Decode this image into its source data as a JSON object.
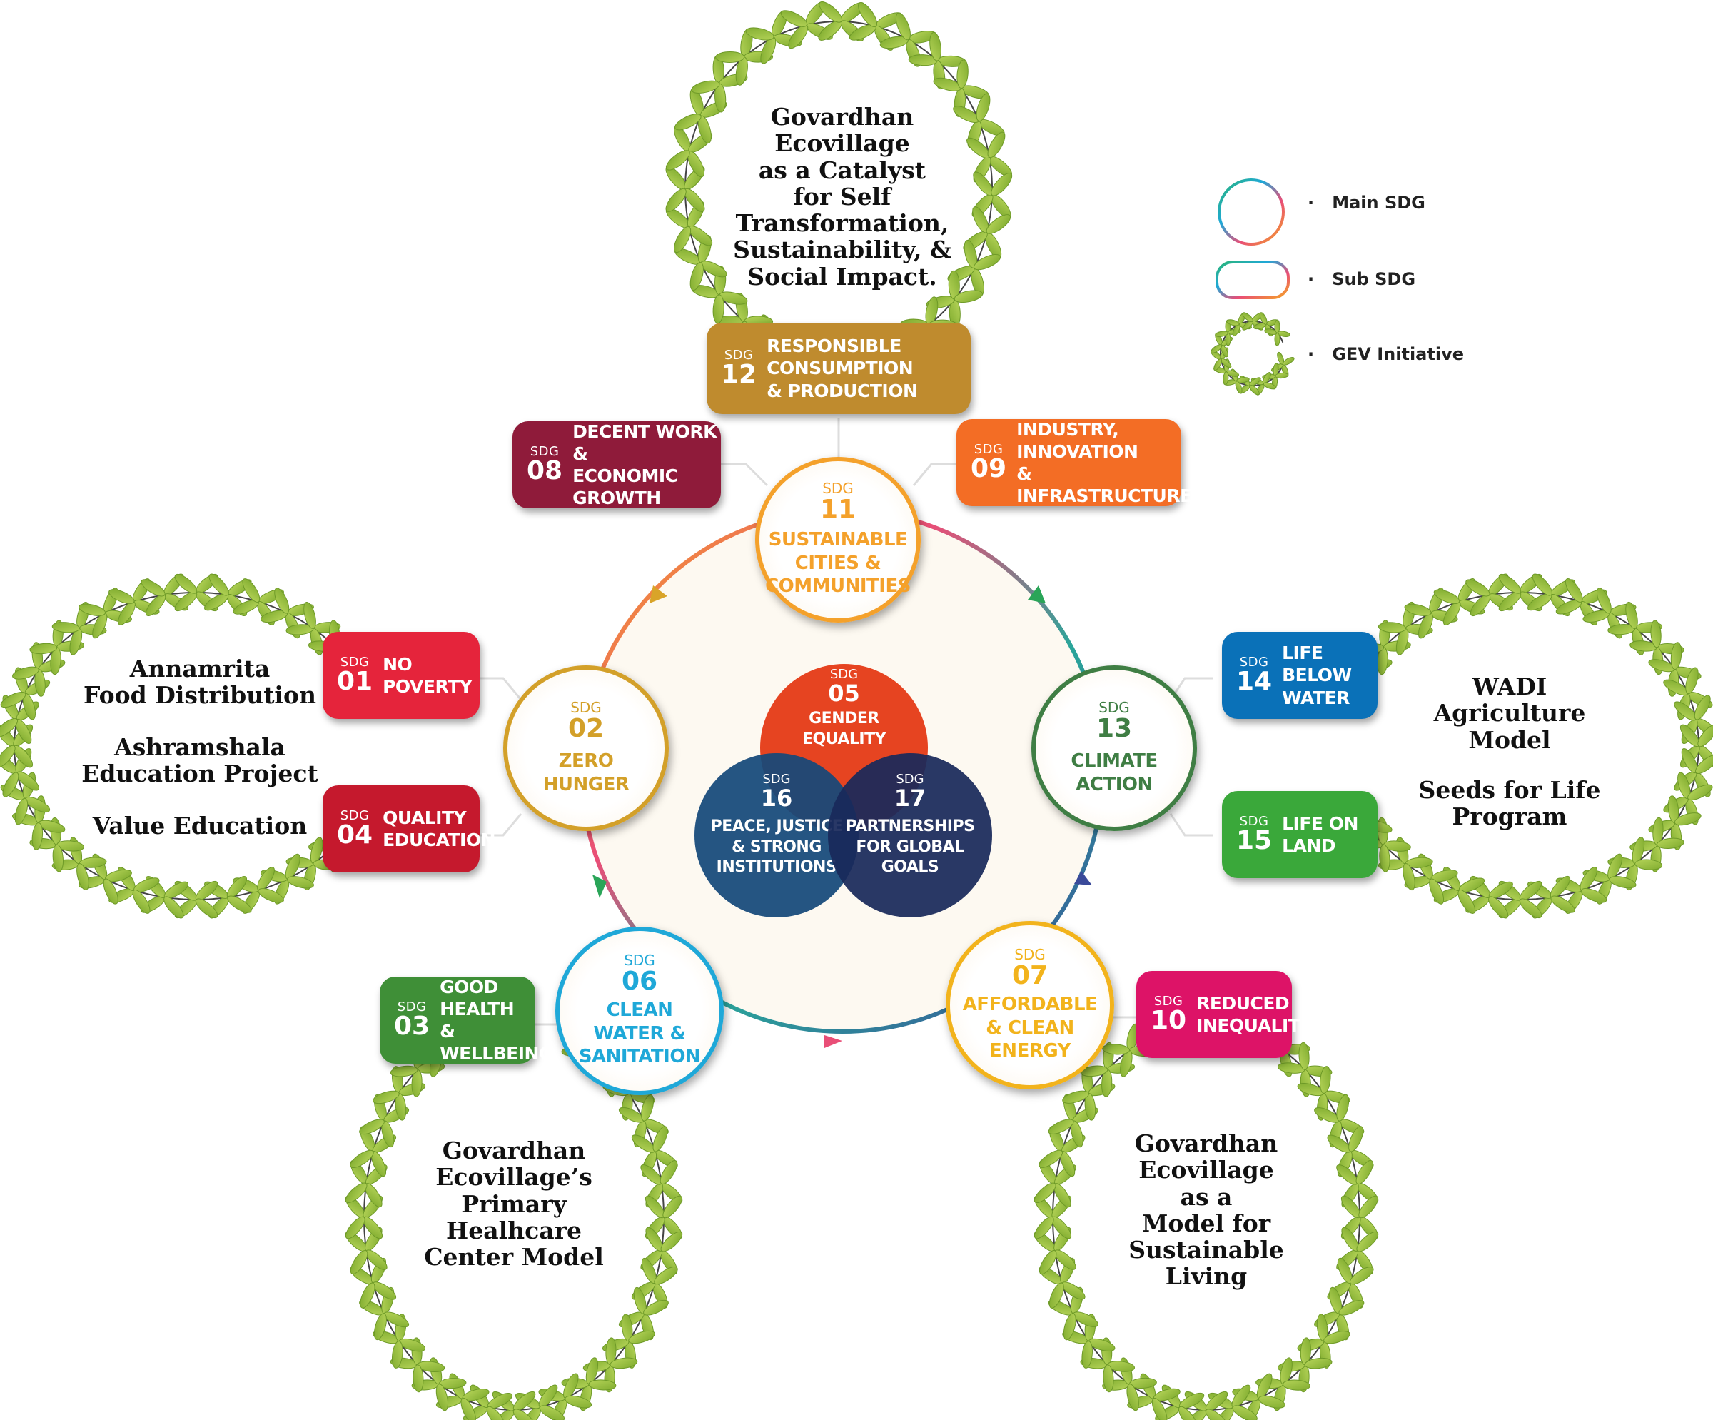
{
  "legend": [
    {
      "label": "Main SDG",
      "icon": "main-sdg-ring-icon"
    },
    {
      "label": "Sub SDG",
      "icon": "sub-sdg-pill-icon"
    },
    {
      "label": "GEV Initiative",
      "icon": "laurel-wreath-icon"
    }
  ],
  "legend_bullet": "·",
  "sdg_prefix": "SDG",
  "center": [
    {
      "id": "05",
      "title": "GENDER\nEQUALITY",
      "color": "#e5401d"
    },
    {
      "id": "16",
      "title": "PEACE, JUSTICE\n& STRONG\nINSTITUTIONS",
      "color": "#14487a"
    },
    {
      "id": "17",
      "title": "PARTNERSHIPS\nFOR GLOBAL\nGOALS",
      "color": "#19295a"
    }
  ],
  "main_sdgs": [
    {
      "id": "11",
      "title": "SUSTAINABLE\nCITIES &\nCOMMUNITIES",
      "color": "#f4a12b"
    },
    {
      "id": "02",
      "title": "ZERO\nHUNGER",
      "color": "#d3a029"
    },
    {
      "id": "13",
      "title": "CLIMATE\nACTION",
      "color": "#3f7e44"
    },
    {
      "id": "06",
      "title": "CLEAN\nWATER &\nSANITATION",
      "color": "#1fa8d8"
    },
    {
      "id": "07",
      "title": "AFFORDABLE\n& CLEAN\nENERGY",
      "color": "#f2b31c"
    }
  ],
  "sub_sdgs": [
    {
      "id": "12",
      "title": "RESPONSIBLE CONSUMPTION\n& PRODUCTION",
      "color": "#bf8b2e"
    },
    {
      "id": "08",
      "title": "DECENT WORK &\nECONOMIC GROWTH",
      "color": "#a21942"
    },
    {
      "id": "09",
      "title": "INDUSTRY, INNOVATION\n& INFRASTRUCTURE",
      "color": "#f36d25"
    },
    {
      "id": "01",
      "title": "NO\nPOVERTY",
      "color": "#e5243b"
    },
    {
      "id": "04",
      "title": "QUALITY\nEDUCATION",
      "color": "#c5192d"
    },
    {
      "id": "14",
      "title": "LIFE BELOW\nWATER",
      "color": "#0a97d9"
    },
    {
      "id": "15",
      "title": "LIFE ON\nLAND",
      "color": "#56c02b"
    },
    {
      "id": "03",
      "title": "GOOD HEALTH\n& WELLBEING",
      "color": "#4c9f38"
    },
    {
      "id": "10",
      "title": "REDUCED\nINEQUALITIES",
      "color": "#dd1367"
    }
  ],
  "initiatives": {
    "top": "Govardhan\nEcovillage\nas a Catalyst\nfor Self\nTransformation,\nSustainability, &\nSocial Impact.",
    "left": [
      "Annamrita\nFood Distribution",
      "Ashramshala\nEducation Project",
      "Value Education"
    ],
    "right": [
      "WADI\nAgriculture\nModel",
      "Seeds for Life\nProgram"
    ],
    "bottom_left": "Govardhan\nEcovillage’s\nPrimary\nHealhcare\nCenter Model",
    "bottom_right": "Govardhan\nEcovillage\nas a\nModel for\nSustainable\nLiving"
  }
}
